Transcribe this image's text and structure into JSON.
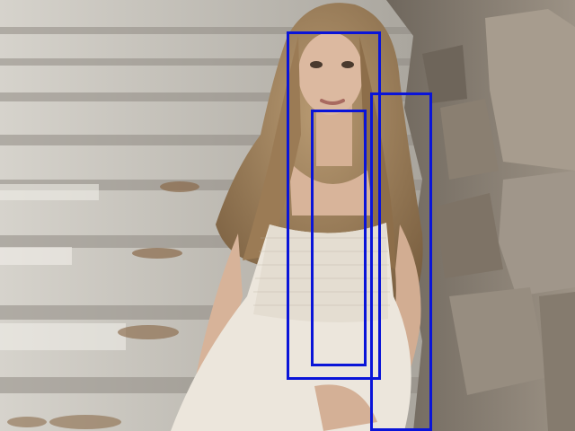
{
  "image": {
    "subject": "woman-sitting-on-stone-steps",
    "colors": {
      "steps": "#c9c6bf",
      "steps_shadow": "#8f8b83",
      "wall": "#8d8275",
      "wall_dark": "#5e564c",
      "hair": "#9a7a55",
      "skin": "#d8b49a",
      "dress": "#ece6dc",
      "box_stroke": "#0a14d8"
    }
  },
  "boxes": [
    {
      "id": "box-1"
    },
    {
      "id": "box-2"
    },
    {
      "id": "box-3"
    }
  ]
}
